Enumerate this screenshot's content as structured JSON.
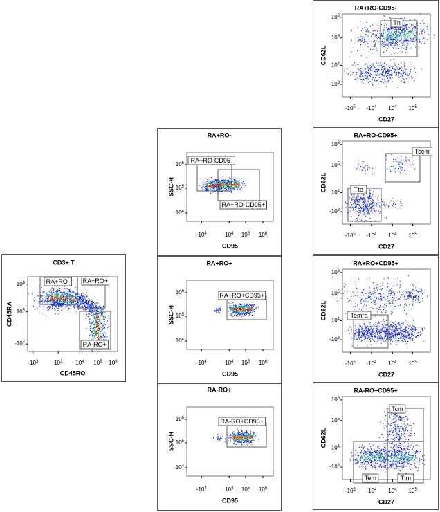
{
  "panels": [
    {
      "title": "CD3+ T",
      "x_label": "CD45RO",
      "y_label": "CD45RA",
      "x_ticks": [
        {
          "base": "-10",
          "exp": "3"
        },
        {
          "base": "10",
          "exp": "3"
        },
        {
          "base": "10",
          "exp": "4"
        },
        {
          "base": "10",
          "exp": "5"
        },
        {
          "base": "10",
          "exp": "6"
        }
      ],
      "y_ticks": [
        {
          "base": "10",
          "exp": "6"
        },
        {
          "base": "10",
          "exp": "5"
        },
        {
          "base": "-10",
          "exp": "4"
        }
      ],
      "gates": [
        "RA+RO-",
        "RA+RO+",
        "RA-RO+"
      ]
    },
    {
      "title": "RA+RO-",
      "x_label": "CD95",
      "y_label": "SSC-H",
      "x_ticks": [
        {
          "base": "-10",
          "exp": "4"
        },
        {
          "base": "10",
          "exp": "4"
        },
        {
          "base": "10",
          "exp": "5"
        },
        {
          "base": "10",
          "exp": "6"
        }
      ],
      "y_ticks": [
        {
          "base": "10",
          "exp": "6"
        },
        {
          "base": "10",
          "exp": "5"
        },
        {
          "base": "10",
          "exp": "4"
        }
      ],
      "gates": [
        "RA+RO-CD95-",
        "RA+RO-CD95+"
      ]
    },
    {
      "title": "RA+RO+",
      "x_label": "CD95",
      "y_label": "SSC-H",
      "x_ticks": [
        {
          "base": "-10",
          "exp": "4"
        },
        {
          "base": "10",
          "exp": "4"
        },
        {
          "base": "10",
          "exp": "5"
        },
        {
          "base": "10",
          "exp": "6"
        }
      ],
      "y_ticks": [
        {
          "base": "10",
          "exp": "6"
        },
        {
          "base": "10",
          "exp": "5"
        },
        {
          "base": "10",
          "exp": "4"
        }
      ],
      "gates": [
        "RA+RO+CD95+"
      ]
    },
    {
      "title": "RA-RO+",
      "x_label": "CD95",
      "y_label": "SSC-H",
      "x_ticks": [
        {
          "base": "-10",
          "exp": "4"
        },
        {
          "base": "10",
          "exp": "4"
        },
        {
          "base": "10",
          "exp": "5"
        },
        {
          "base": "10",
          "exp": "6"
        }
      ],
      "y_ticks": [
        {
          "base": "10",
          "exp": "6"
        },
        {
          "base": "10",
          "exp": "5"
        },
        {
          "base": "10",
          "exp": "4"
        }
      ],
      "gates": [
        "RA-RO+CD95+"
      ]
    },
    {
      "title": "RA+RO-CD95-",
      "x_label": "CD27",
      "y_label": "CD62L",
      "x_ticks": [
        {
          "base": "-10",
          "exp": "5"
        },
        {
          "base": "-10",
          "exp": "4"
        },
        {
          "base": "10",
          "exp": "4"
        },
        {
          "base": "10",
          "exp": "5"
        }
      ],
      "y_ticks": [
        {
          "base": "10",
          "exp": "6"
        },
        {
          "base": "10",
          "exp": "5"
        },
        {
          "base": "10",
          "exp": "4"
        },
        {
          "base": "-10",
          "exp": "3"
        }
      ],
      "gates": [
        "Tn"
      ]
    },
    {
      "title": "RA+RO-CD95+",
      "x_label": "CD27",
      "y_label": "CD62L",
      "x_ticks": [
        {
          "base": "-10",
          "exp": "5"
        },
        {
          "base": "-10",
          "exp": "4"
        },
        {
          "base": "10",
          "exp": "4"
        },
        {
          "base": "10",
          "exp": "5"
        }
      ],
      "y_ticks": [
        {
          "base": "10",
          "exp": "6"
        },
        {
          "base": "10",
          "exp": "5"
        },
        {
          "base": "10",
          "exp": "4"
        },
        {
          "base": "-10",
          "exp": "3"
        }
      ],
      "gates": [
        "Tscm",
        "Tte"
      ]
    },
    {
      "title": "RA+RO+CD95+",
      "x_label": "CD27",
      "y_label": "CD62L",
      "x_ticks": [
        {
          "base": "-10",
          "exp": "5"
        },
        {
          "base": "-10",
          "exp": "4"
        },
        {
          "base": "10",
          "exp": "4"
        },
        {
          "base": "10",
          "exp": "5"
        }
      ],
      "y_ticks": [
        {
          "base": "10",
          "exp": "6"
        },
        {
          "base": "10",
          "exp": "5"
        },
        {
          "base": "10",
          "exp": "4"
        },
        {
          "base": "-10",
          "exp": "3"
        }
      ],
      "gates": [
        "Temra"
      ]
    },
    {
      "title": "RA-RO+CD95+",
      "x_label": "CD27",
      "y_label": "CD62L",
      "x_ticks": [
        {
          "base": "-10",
          "exp": "5"
        },
        {
          "base": "-10",
          "exp": "4"
        },
        {
          "base": "10",
          "exp": "4"
        },
        {
          "base": "10",
          "exp": "5"
        }
      ],
      "y_ticks": [
        {
          "base": "10",
          "exp": "6"
        },
        {
          "base": "10",
          "exp": "5"
        },
        {
          "base": "10",
          "exp": "4"
        },
        {
          "base": "-10",
          "exp": "3"
        }
      ],
      "gates": [
        "Tcm",
        "Tem",
        "Ttm"
      ]
    }
  ]
}
